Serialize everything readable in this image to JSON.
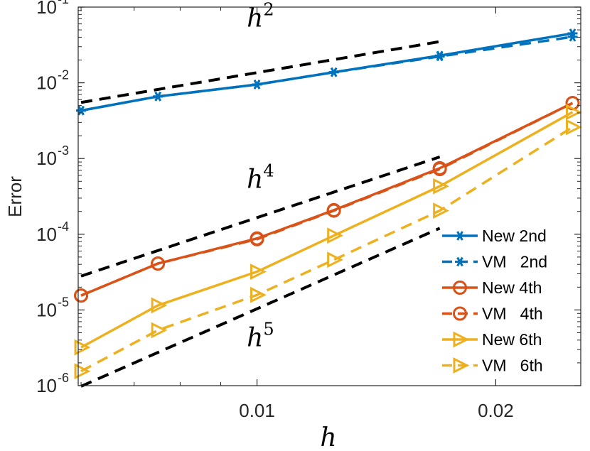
{
  "chart_data": {
    "type": "line",
    "xscale": "log",
    "yscale": "log",
    "xlabel": "h",
    "ylabel": "Error",
    "xlim": [
      0.00595,
      0.0256
    ],
    "ylim": [
      1e-06,
      0.1
    ],
    "xticks": [
      {
        "value": 0.01,
        "label": "0.01"
      },
      {
        "value": 0.02,
        "label": "0.02"
      }
    ],
    "yticks": [
      {
        "value": 1e-06,
        "base": "10",
        "exp": "-6"
      },
      {
        "value": 1e-05,
        "base": "10",
        "exp": "-5"
      },
      {
        "value": 0.0001,
        "base": "10",
        "exp": "-4"
      },
      {
        "value": 0.001,
        "base": "10",
        "exp": "-3"
      },
      {
        "value": 0.01,
        "base": "10",
        "exp": "-2"
      },
      {
        "value": 0.1,
        "base": "10",
        "exp": "-1"
      }
    ],
    "x": [
      0.006,
      0.0075,
      0.01,
      0.0125,
      0.017,
      0.025
    ],
    "series": [
      {
        "name": "New 2nd",
        "color": "#0072BD",
        "dash": "solid",
        "marker": "asterisk",
        "values": [
          0.0043,
          0.0066,
          0.0095,
          0.0138,
          0.0229,
          0.045
        ]
      },
      {
        "name": "VM   2nd",
        "color": "#0072BD",
        "dash": "dashed",
        "marker": "asterisk",
        "values": [
          0.0043,
          0.0066,
          0.0095,
          0.0138,
          0.0223,
          0.0405
        ]
      },
      {
        "name": "New 4th",
        "color": "#D95319",
        "dash": "solid",
        "marker": "circle",
        "values": [
          1.55e-05,
          4.1e-05,
          8.8e-05,
          0.000208,
          0.000745,
          0.0054
        ]
      },
      {
        "name": "VM   4th",
        "color": "#D95319",
        "dash": "dashed",
        "marker": "circle",
        "values": [
          1.55e-05,
          4.1e-05,
          8.6e-05,
          0.000205,
          0.000725,
          0.0054
        ]
      },
      {
        "name": "New 6th",
        "color": "#EDB120",
        "dash": "solid",
        "marker": "triangle-right",
        "values": [
          3.2e-06,
          1.15e-05,
          3.2e-05,
          9.6e-05,
          0.00043,
          0.0041
        ]
      },
      {
        "name": "VM   6th",
        "color": "#EDB120",
        "dash": "dashed",
        "marker": "triangle-right",
        "values": [
          1.55e-06,
          5.4e-06,
          1.58e-05,
          4.6e-05,
          0.000205,
          0.0026
        ]
      }
    ],
    "reference_lines": [
      {
        "label_base": "h",
        "label_exp": "2",
        "color": "#000000",
        "x": [
          0.006,
          0.017
        ],
        "y": [
          0.0055,
          0.035
        ],
        "label_at": {
          "x": 0.0101,
          "y": 0.055
        }
      },
      {
        "label_base": "h",
        "label_exp": "4",
        "color": "#000000",
        "x": [
          0.006,
          0.017
        ],
        "y": [
          2.8e-05,
          0.00105
        ],
        "label_at": {
          "x": 0.0101,
          "y": 0.00041
        }
      },
      {
        "label_base": "h",
        "label_exp": "5",
        "color": "#000000",
        "x": [
          0.006,
          0.017
        ],
        "y": [
          9.8e-07,
          0.00012
        ],
        "label_at": {
          "x": 0.0101,
          "y": 3.3e-06
        }
      }
    ],
    "legend_location": "bottom-right"
  }
}
